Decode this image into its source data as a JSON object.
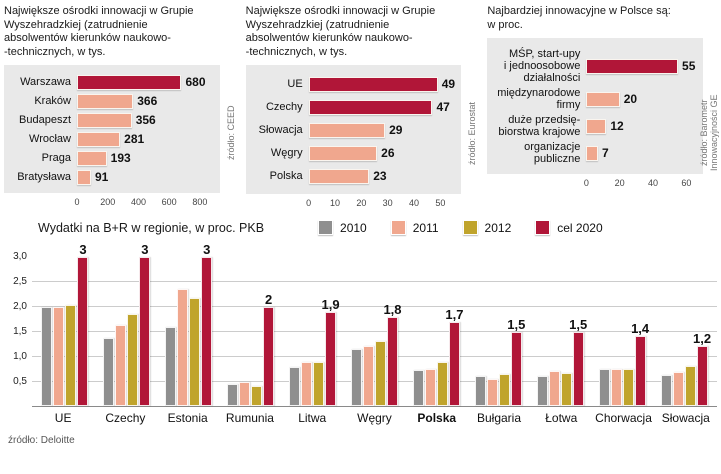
{
  "colors": {
    "crimson": "#b11638",
    "salmon": "#f0a78e",
    "gold": "#c0a42c",
    "gray": "#8f8f8f",
    "chart_bg": "#e9e9e9",
    "grid": "#cccccc",
    "text": "#111111",
    "muted": "#777777"
  },
  "chart_data": [
    {
      "type": "bar",
      "orientation": "horizontal",
      "title": "Największe ośrodki innowacji w Grupie\nWyszehradzkiej (zatrudnienie\nabsolwentów kierunków naukowo-\n-technicznych, w tys.",
      "categories": [
        "Warszawa",
        "Kraków",
        "Budapeszt",
        "Wrocław",
        "Praga",
        "Bratysława"
      ],
      "values": [
        680,
        366,
        356,
        281,
        193,
        91
      ],
      "value_labels": [
        "680",
        "366",
        "356",
        "281",
        "193",
        "91"
      ],
      "highlight_indices": [
        0
      ],
      "xlim": [
        0,
        800
      ],
      "xticks": [
        "0",
        "200",
        "400",
        "600",
        "800"
      ],
      "source": "źródło: CEED"
    },
    {
      "type": "bar",
      "orientation": "horizontal",
      "title": "Największe ośrodki innowacji w Grupie\nWyszehradzkiej (zatrudnienie\nabsolwentów kierunków naukowo-\n-technicznych, w tys.",
      "categories": [
        "UE",
        "Czechy",
        "Słowacja",
        "Węgry",
        "Polska"
      ],
      "values": [
        49,
        47,
        29,
        26,
        23
      ],
      "value_labels": [
        "49",
        "47",
        "29",
        "26",
        "23"
      ],
      "highlight_indices": [
        0,
        1
      ],
      "xlim": [
        0,
        50
      ],
      "xticks": [
        "0",
        "10",
        "20",
        "30",
        "40",
        "50"
      ],
      "source": "źródło: Eurostat"
    },
    {
      "type": "bar",
      "orientation": "horizontal",
      "title": "Najbardziej innowacyjne w Polsce są:\nw proc.",
      "categories": [
        "MŚP, start-upy\ni jednoosobowe\ndziałalności",
        "międzynarodowe\nfirmy",
        "duże przedsię-\nbiorstwa krajowe",
        "organizacje\npubliczne"
      ],
      "values": [
        55,
        20,
        12,
        7
      ],
      "value_labels": [
        "55",
        "20",
        "12",
        "7"
      ],
      "highlight_indices": [
        0
      ],
      "xlim": [
        0,
        60
      ],
      "xticks": [
        "0",
        "20",
        "40",
        "60"
      ],
      "source": "źródło: Barometr\nInnowacyjności GE"
    },
    {
      "type": "bar",
      "orientation": "vertical",
      "title": "Wydatki na B+R w regionie, w proc. PKB",
      "categories": [
        "UE",
        "Czechy",
        "Estonia",
        "Rumunia",
        "Litwa",
        "Węgry",
        "Polska",
        "Bułgaria",
        "Łotwa",
        "Chorwacja",
        "Słowacja"
      ],
      "bold_category": "Polska",
      "series": [
        {
          "name": "2010",
          "color": "gray",
          "values": [
            2.0,
            1.36,
            1.6,
            0.45,
            0.79,
            1.15,
            0.72,
            0.6,
            0.6,
            0.74,
            0.63
          ]
        },
        {
          "name": "2011",
          "color": "salmon",
          "values": [
            2.0,
            1.64,
            2.36,
            0.49,
            0.89,
            1.21,
            0.74,
            0.55,
            0.7,
            0.75,
            0.68
          ]
        },
        {
          "name": "2012",
          "color": "gold",
          "values": [
            2.04,
            1.85,
            2.17,
            0.4,
            0.89,
            1.3,
            0.89,
            0.64,
            0.66,
            0.75,
            0.81
          ]
        },
        {
          "name": "cel 2020",
          "color": "crimson",
          "values": [
            3,
            3,
            3,
            2,
            1.9,
            1.8,
            1.7,
            1.5,
            1.5,
            1.4,
            1.2
          ],
          "labels": [
            "3",
            "3",
            "3",
            "2",
            "1,9",
            "1,8",
            "1,7",
            "1,5",
            "1,5",
            "1,4",
            "1,2"
          ]
        }
      ],
      "ylim": [
        0,
        3
      ],
      "yticks": [
        {
          "label": "3,0",
          "value": 3.0
        },
        {
          "label": "2,5",
          "value": 2.5
        },
        {
          "label": "2,0",
          "value": 2.0
        },
        {
          "label": "1,5",
          "value": 1.5
        },
        {
          "label": "1,0",
          "value": 1.0
        },
        {
          "label": "0,5",
          "value": 0.5
        }
      ],
      "source": "źródło: Deloitte"
    }
  ]
}
